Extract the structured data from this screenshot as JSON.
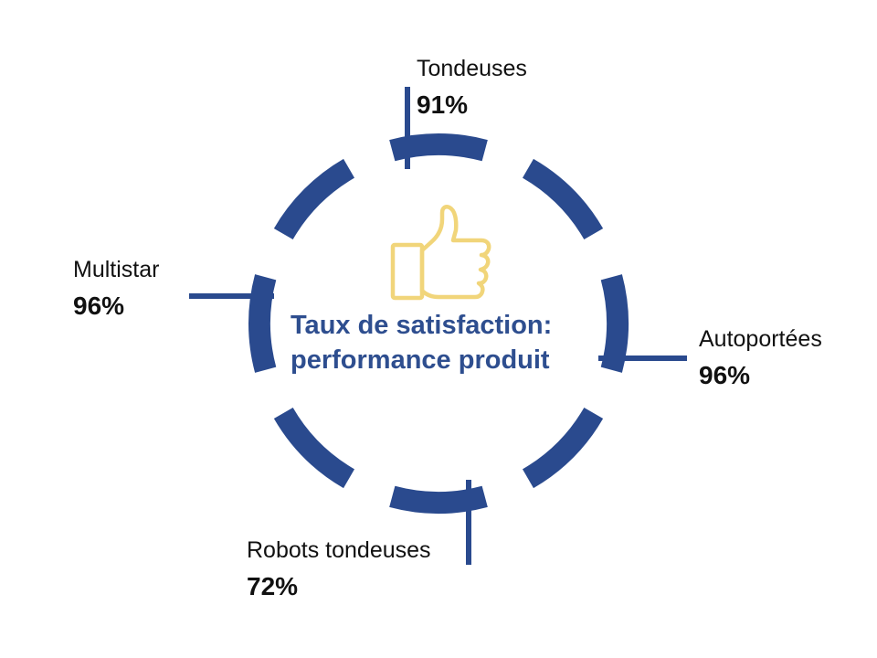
{
  "title": {
    "line1": "Taux de satisfaction:",
    "line2": "performance produit"
  },
  "colors": {
    "ring": "#2a4a8e",
    "icon": "#f1d57a",
    "text": "#111111",
    "title": "#2e4e8f"
  },
  "icon": "thumbs-up-icon",
  "categories": [
    {
      "id": "tondeuses",
      "name": "Tondeuses",
      "value": "91%"
    },
    {
      "id": "autoportees",
      "name": "Autoportées",
      "value": "96%"
    },
    {
      "id": "robots",
      "name": "Robots tondeuses",
      "value": "72%"
    },
    {
      "id": "multistar",
      "name": "Multistar",
      "value": "96%"
    }
  ]
}
